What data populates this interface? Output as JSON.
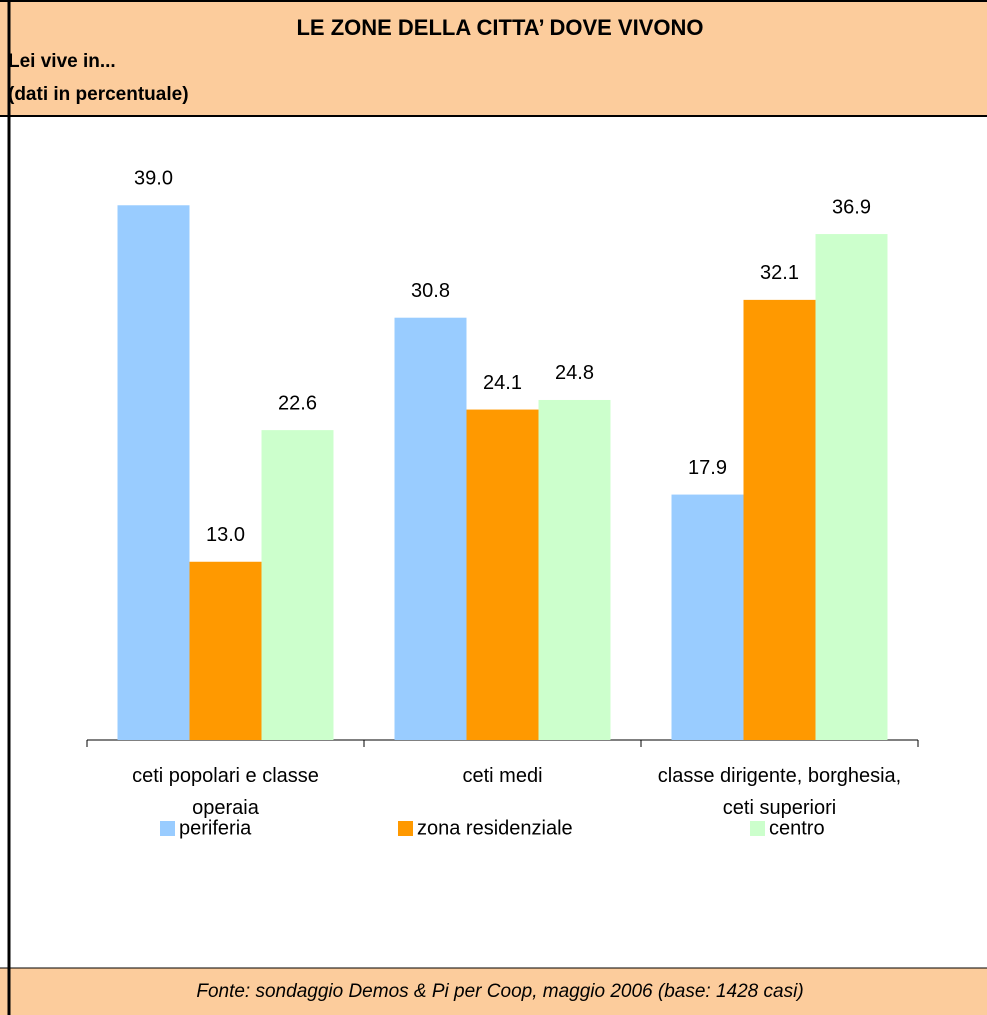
{
  "chart_data": {
    "type": "bar",
    "title": "LE ZONE DELLA CITTA’ DOVE VIVONO",
    "subtitle": [
      "Lei vive in...",
      "(dati in percentuale)"
    ],
    "categories": [
      "ceti popolari e classe operaia",
      "ceti medi",
      "classe dirigente, borghesia, ceti superiori"
    ],
    "series": [
      {
        "name": "periferia",
        "color": "#99ccff",
        "values": [
          39.0,
          30.8,
          17.9
        ],
        "value_labels": [
          "39.0",
          "30.8",
          "17.9"
        ]
      },
      {
        "name": "zona residenziale",
        "color": "#ff9900",
        "values": [
          13.0,
          24.1,
          32.1
        ],
        "value_labels": [
          "13.0",
          "24.1",
          "32.1"
        ]
      },
      {
        "name": "centro",
        "color": "#ccffcc",
        "values": [
          22.6,
          24.8,
          36.9
        ],
        "value_labels": [
          "22.6",
          "24.8",
          "36.9"
        ]
      }
    ],
    "ylim": [
      0,
      45
    ],
    "source": "Fonte: sondaggio Demos & Pi per Coop, maggio 2006 (base: 1428 casi)"
  }
}
